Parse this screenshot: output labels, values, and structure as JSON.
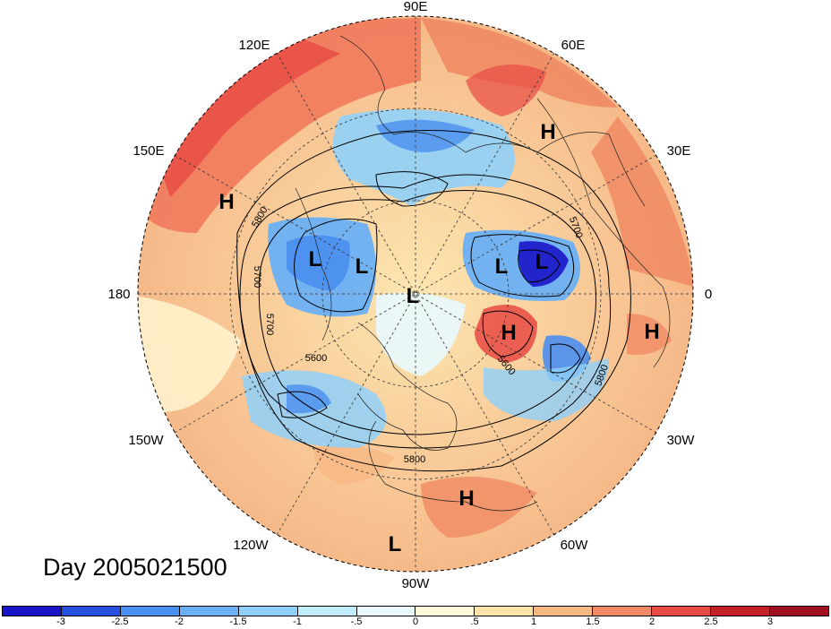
{
  "title": "Day 2005021500",
  "longitude_labels": {
    "top": "90E",
    "upper_left": "120E",
    "upper_right": "60E",
    "left_upper": "150E",
    "right_upper": "30E",
    "left": "180",
    "right": "0",
    "left_lower": "150W",
    "right_lower": "30W",
    "lower_left": "120W",
    "lower_right": "60W",
    "bottom": "90W"
  },
  "pressure_systems": [
    {
      "label": "H",
      "type": "high"
    },
    {
      "label": "H",
      "type": "high"
    },
    {
      "label": "L",
      "type": "low"
    },
    {
      "label": "L",
      "type": "low"
    },
    {
      "label": "L",
      "type": "low"
    },
    {
      "label": "L",
      "type": "low"
    },
    {
      "label": "L",
      "type": "low"
    },
    {
      "label": "H",
      "type": "high"
    },
    {
      "label": "H",
      "type": "high"
    },
    {
      "label": "H",
      "type": "high"
    },
    {
      "label": "L",
      "type": "low"
    }
  ],
  "contour_labels": [
    "5800",
    "5700",
    "5700",
    "5600",
    "5700",
    "5600",
    "5800",
    "5800"
  ],
  "colorbar": {
    "ticks": [
      "-3",
      "-2.5",
      "-2",
      "-1.5",
      "-1",
      "-.5",
      "0",
      ".5",
      "1",
      "1.5",
      "2",
      "2.5",
      "3"
    ],
    "colors": [
      "#1a14c8",
      "#2850e0",
      "#4a8ef0",
      "#6bb0f5",
      "#8fd0fa",
      "#c0ecfc",
      "#e8fafe",
      "#fff8d8",
      "#fce4a8",
      "#f8b884",
      "#f08a64",
      "#e84a44",
      "#c42028",
      "#a01020"
    ]
  }
}
